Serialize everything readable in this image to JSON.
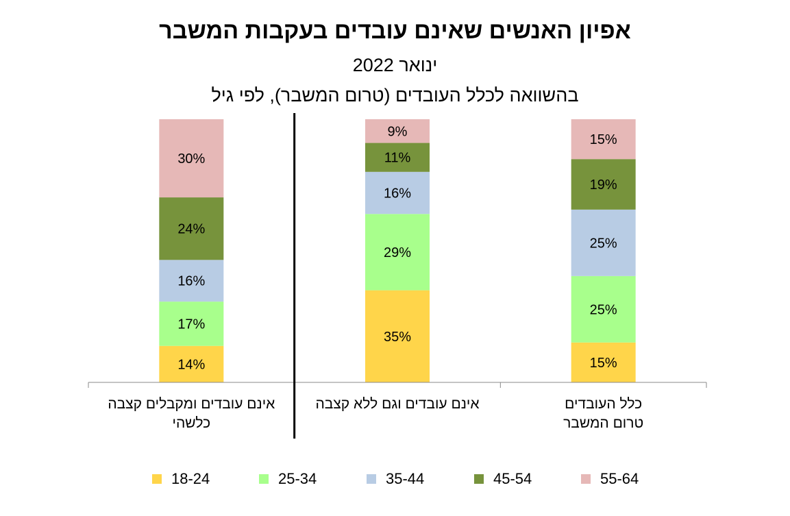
{
  "title": "אפיון האנשים שאינם עובדים בעקבות המשבר",
  "subtitle": "ינואר 2022",
  "subtitle2": "בהשוואה לכלל העובדים (טרום המשבר), לפי גיל",
  "chart_data": {
    "type": "bar",
    "stacked": true,
    "normalized": true,
    "categories": [
      "כלל העובדים טרום המשבר",
      "אינם עובדים וגם ללא קצבה",
      "אינם עובדים ומקבלים קצבה כלשהי"
    ],
    "category_lines": [
      [
        "כלל העובדים",
        "טרום המשבר"
      ],
      [
        "אינם עובדים וגם ללא קצבה"
      ],
      [
        "אינם עובדים ומקבלים קצבה",
        "כלשהי"
      ]
    ],
    "series": [
      {
        "name": "18-24",
        "color": "#FFD54A",
        "values": [
          15,
          35,
          14
        ]
      },
      {
        "name": "25-34",
        "color": "#A8FF8C",
        "values": [
          25,
          29,
          17
        ]
      },
      {
        "name": "35-44",
        "color": "#B8CCE4",
        "values": [
          25,
          16,
          16
        ]
      },
      {
        "name": "45-54",
        "color": "#77933C",
        "values": [
          19,
          11,
          24
        ]
      },
      {
        "name": "55-64",
        "color": "#E6B8B7",
        "values": [
          15,
          9,
          30
        ]
      }
    ],
    "value_suffix": "%",
    "legend_position": "bottom",
    "grid": false
  }
}
